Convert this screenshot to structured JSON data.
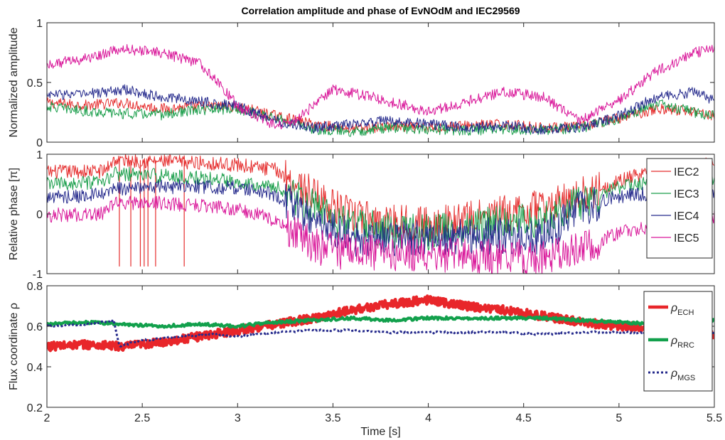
{
  "chart_data": [
    {
      "type": "line",
      "title": "Correlation amplitude and phase of EvNOdM and IEC29569",
      "ylabel": "Normalized amplitude",
      "xlim": [
        2,
        5.5
      ],
      "ylim": [
        0,
        1
      ],
      "xticks": [
        "2",
        "2.5",
        "3",
        "3.5",
        "4",
        "4.5",
        "5",
        "5.5"
      ],
      "yticks": [
        "0",
        "0.5",
        "1"
      ],
      "series": [
        {
          "name": "IEC2",
          "color": "#e52d2d",
          "x": [
            2.0,
            2.2,
            2.4,
            2.6,
            2.8,
            3.0,
            3.2,
            3.4,
            3.6,
            3.8,
            4.0,
            4.2,
            4.4,
            4.6,
            4.8,
            5.0,
            5.2,
            5.4,
            5.5
          ],
          "y": [
            0.33,
            0.31,
            0.33,
            0.28,
            0.3,
            0.3,
            0.22,
            0.15,
            0.11,
            0.13,
            0.12,
            0.14,
            0.15,
            0.12,
            0.13,
            0.2,
            0.28,
            0.26,
            0.22
          ]
        },
        {
          "name": "IEC3",
          "color": "#1a9e4b",
          "x": [
            2.0,
            2.2,
            2.4,
            2.6,
            2.8,
            3.0,
            3.2,
            3.4,
            3.6,
            3.8,
            4.0,
            4.2,
            4.4,
            4.6,
            4.8,
            5.0,
            5.2,
            5.4,
            5.5
          ],
          "y": [
            0.3,
            0.26,
            0.24,
            0.23,
            0.27,
            0.28,
            0.2,
            0.11,
            0.09,
            0.12,
            0.11,
            0.1,
            0.11,
            0.1,
            0.12,
            0.2,
            0.32,
            0.25,
            0.22
          ]
        },
        {
          "name": "IEC4",
          "color": "#252a8c",
          "x": [
            2.0,
            2.2,
            2.4,
            2.6,
            2.8,
            3.0,
            3.2,
            3.4,
            3.6,
            3.8,
            4.0,
            4.2,
            4.4,
            4.6,
            4.8,
            5.0,
            5.2,
            5.4,
            5.5
          ],
          "y": [
            0.4,
            0.4,
            0.44,
            0.38,
            0.34,
            0.3,
            0.18,
            0.12,
            0.15,
            0.18,
            0.15,
            0.12,
            0.14,
            0.11,
            0.12,
            0.22,
            0.38,
            0.42,
            0.35
          ]
        },
        {
          "name": "IEC5",
          "color": "#d9189a",
          "x": [
            2.0,
            2.2,
            2.3,
            2.4,
            2.6,
            2.8,
            2.9,
            3.0,
            3.2,
            3.3,
            3.5,
            3.7,
            3.9,
            4.0,
            4.2,
            4.4,
            4.6,
            4.8,
            5.0,
            5.2,
            5.4,
            5.5
          ],
          "y": [
            0.65,
            0.7,
            0.74,
            0.78,
            0.75,
            0.66,
            0.5,
            0.3,
            0.14,
            0.18,
            0.44,
            0.38,
            0.3,
            0.25,
            0.34,
            0.42,
            0.38,
            0.18,
            0.35,
            0.6,
            0.75,
            0.78
          ]
        }
      ]
    },
    {
      "type": "line",
      "ylabel": "Relative phase [π]",
      "xlim": [
        2,
        5.5
      ],
      "ylim": [
        -1,
        1
      ],
      "xticks": [
        "2",
        "2.5",
        "3",
        "3.5",
        "4",
        "4.5",
        "5",
        "5.5"
      ],
      "yticks": [
        "-1",
        "0",
        "1"
      ],
      "legend": {
        "position": "top-right",
        "entries": [
          "IEC2",
          "IEC3",
          "IEC4",
          "IEC5"
        ]
      },
      "series": [
        {
          "name": "IEC2",
          "color": "#e52d2d",
          "x": [
            2.0,
            2.3,
            2.35,
            2.6,
            2.8,
            3.0,
            3.2,
            3.4,
            3.6,
            3.8,
            4.0,
            4.2,
            4.4,
            4.6,
            4.8,
            5.0,
            5.2,
            5.4,
            5.5
          ],
          "y": [
            0.7,
            0.72,
            0.9,
            0.88,
            0.86,
            0.82,
            0.74,
            0.3,
            -0.05,
            -0.12,
            -0.18,
            -0.1,
            0.0,
            0.1,
            0.3,
            0.55,
            0.75,
            0.8,
            0.85
          ]
        },
        {
          "name": "IEC3",
          "color": "#1a9e4b",
          "x": [
            2.0,
            2.3,
            2.35,
            2.6,
            2.8,
            3.0,
            3.2,
            3.4,
            3.6,
            3.8,
            4.0,
            4.2,
            4.4,
            4.6,
            4.8,
            5.0,
            5.2,
            5.4,
            5.5
          ],
          "y": [
            0.5,
            0.52,
            0.68,
            0.64,
            0.6,
            0.55,
            0.45,
            0.1,
            -0.2,
            -0.28,
            -0.3,
            -0.22,
            -0.15,
            -0.1,
            0.2,
            0.45,
            0.55,
            0.58,
            0.6
          ]
        },
        {
          "name": "IEC4",
          "color": "#252a8c",
          "x": [
            2.0,
            2.3,
            2.35,
            2.6,
            2.8,
            3.0,
            3.2,
            3.4,
            3.6,
            3.8,
            4.0,
            4.2,
            4.4,
            4.6,
            4.8,
            5.0,
            5.2,
            5.4,
            5.5
          ],
          "y": [
            0.28,
            0.32,
            0.42,
            0.45,
            0.46,
            0.44,
            0.32,
            -0.1,
            -0.4,
            -0.45,
            -0.4,
            -0.4,
            -0.35,
            -0.4,
            0.1,
            0.3,
            0.35,
            0.4,
            0.35
          ]
        },
        {
          "name": "IEC5",
          "color": "#d9189a",
          "x": [
            2.0,
            2.3,
            2.35,
            2.6,
            2.8,
            3.0,
            3.2,
            3.4,
            3.6,
            3.8,
            4.0,
            4.2,
            4.4,
            4.6,
            4.8,
            5.0,
            5.2,
            5.4,
            5.5
          ],
          "y": [
            -0.02,
            0.0,
            0.18,
            0.18,
            0.15,
            0.08,
            -0.1,
            -0.55,
            -0.65,
            -0.65,
            -0.65,
            -0.7,
            -0.72,
            -0.75,
            -0.62,
            -0.3,
            -0.2,
            -0.1,
            -0.05
          ]
        }
      ]
    },
    {
      "type": "line",
      "ylabel": "Flux coordinate ρ",
      "xlabel": "Time [s]",
      "xlim": [
        2,
        5.5
      ],
      "ylim": [
        0.2,
        0.8
      ],
      "xticks": [
        "2",
        "2.5",
        "3",
        "3.5",
        "4",
        "4.5",
        "5",
        "5.5"
      ],
      "yticks": [
        "0.2",
        "0.4",
        "0.6",
        "0.8"
      ],
      "legend": {
        "position": "top-right",
        "entries": [
          {
            "symbol": "ρ",
            "sub": "ECH"
          },
          {
            "symbol": "ρ",
            "sub": "RRC"
          },
          {
            "symbol": "ρ",
            "sub": "MGS"
          }
        ]
      },
      "series": [
        {
          "name": "ρECH",
          "color": "#e8262a",
          "style": "solid-thick",
          "x": [
            2.0,
            2.2,
            2.4,
            2.6,
            2.8,
            3.0,
            3.2,
            3.4,
            3.6,
            3.8,
            4.0,
            4.2,
            4.4,
            4.6,
            4.8,
            5.0,
            5.2,
            5.4,
            5.5
          ],
          "y": [
            0.5,
            0.51,
            0.5,
            0.52,
            0.55,
            0.58,
            0.61,
            0.64,
            0.68,
            0.71,
            0.73,
            0.7,
            0.68,
            0.65,
            0.62,
            0.6,
            0.59,
            0.58,
            0.55
          ]
        },
        {
          "name": "ρRRC",
          "color": "#12a04c",
          "style": "solid-thick",
          "x": [
            2.0,
            2.2,
            2.4,
            2.6,
            2.8,
            3.0,
            3.2,
            3.4,
            3.6,
            3.8,
            4.0,
            4.2,
            4.4,
            4.6,
            4.8,
            5.0,
            5.2,
            5.4,
            5.5
          ],
          "y": [
            0.61,
            0.62,
            0.61,
            0.6,
            0.61,
            0.6,
            0.62,
            0.63,
            0.64,
            0.63,
            0.64,
            0.64,
            0.64,
            0.64,
            0.63,
            0.62,
            0.61,
            0.62,
            0.63
          ]
        },
        {
          "name": "ρMGS",
          "color": "#252a8c",
          "style": "dotted",
          "x": [
            2.0,
            2.2,
            2.35,
            2.38,
            2.5,
            2.7,
            2.9,
            3.0,
            3.2,
            3.4,
            3.6,
            3.8,
            4.0,
            4.2,
            4.4,
            4.6,
            4.8,
            5.0,
            5.2,
            5.4,
            5.5
          ],
          "y": [
            0.6,
            0.61,
            0.63,
            0.5,
            0.53,
            0.55,
            0.56,
            0.55,
            0.57,
            0.58,
            0.58,
            0.57,
            0.57,
            0.57,
            0.57,
            0.56,
            0.57,
            0.57,
            0.57,
            0.58,
            0.57
          ]
        }
      ]
    }
  ]
}
